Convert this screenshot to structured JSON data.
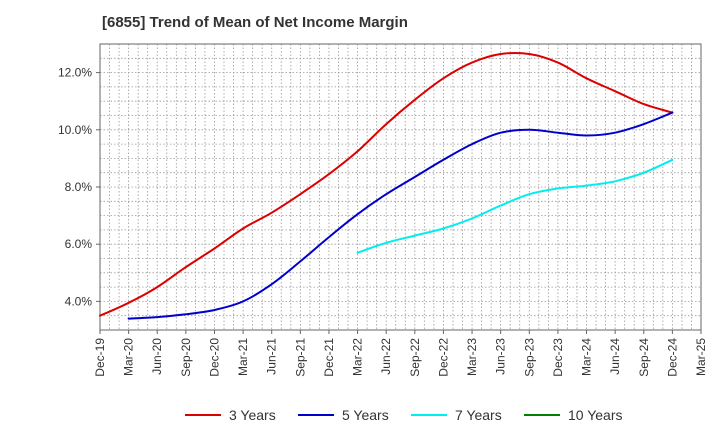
{
  "title": "[6855]  Trend of Mean of Net Income Margin",
  "chart_data": {
    "type": "line",
    "title": "[6855]  Trend of Mean of Net Income Margin",
    "xlabel": "",
    "ylabel": "",
    "x_ticks": [
      "Dec-19",
      "Mar-20",
      "Jun-20",
      "Sep-20",
      "Dec-20",
      "Mar-21",
      "Jun-21",
      "Sep-21",
      "Dec-21",
      "Mar-22",
      "Jun-22",
      "Sep-22",
      "Dec-22",
      "Mar-23",
      "Jun-23",
      "Sep-23",
      "Dec-23",
      "Mar-24",
      "Jun-24",
      "Sep-24",
      "Dec-24",
      "Mar-25"
    ],
    "y_ticks": [
      "4.0%",
      "6.0%",
      "8.0%",
      "10.0%",
      "12.0%"
    ],
    "y_tick_values": [
      4.0,
      6.0,
      8.0,
      10.0,
      12.0
    ],
    "ylim": [
      3.0,
      13.0
    ],
    "grid": true,
    "legend_position": "bottom",
    "series": [
      {
        "name": "3 Years",
        "color": "#dd0000",
        "x": [
          "Dec-19",
          "Mar-20",
          "Jun-20",
          "Sep-20",
          "Dec-20",
          "Mar-21",
          "Jun-21",
          "Sep-21",
          "Dec-21",
          "Mar-22",
          "Jun-22",
          "Sep-22",
          "Dec-22",
          "Mar-23",
          "Jun-23",
          "Sep-23",
          "Dec-23",
          "Mar-24",
          "Jun-24",
          "Sep-24",
          "Dec-24"
        ],
        "values": [
          3.5,
          3.95,
          4.5,
          5.2,
          5.85,
          6.55,
          7.1,
          7.75,
          8.45,
          9.25,
          10.2,
          11.05,
          11.8,
          12.35,
          12.65,
          12.65,
          12.35,
          11.8,
          11.35,
          10.9,
          10.6
        ]
      },
      {
        "name": "5 Years",
        "color": "#0000cc",
        "x": [
          "Mar-20",
          "Jun-20",
          "Sep-20",
          "Dec-20",
          "Mar-21",
          "Jun-21",
          "Sep-21",
          "Dec-21",
          "Mar-22",
          "Jun-22",
          "Sep-22",
          "Dec-22",
          "Mar-23",
          "Jun-23",
          "Sep-23",
          "Dec-23",
          "Mar-24",
          "Jun-24",
          "Sep-24",
          "Dec-24"
        ],
        "values": [
          3.4,
          3.45,
          3.55,
          3.7,
          4.0,
          4.6,
          5.4,
          6.25,
          7.05,
          7.75,
          8.35,
          8.95,
          9.5,
          9.9,
          10.0,
          9.9,
          9.8,
          9.9,
          10.2,
          10.6
        ]
      },
      {
        "name": "7 Years",
        "color": "#00eeee",
        "x": [
          "Mar-22",
          "Jun-22",
          "Sep-22",
          "Dec-22",
          "Mar-23",
          "Jun-23",
          "Sep-23",
          "Dec-23",
          "Mar-24",
          "Jun-24",
          "Sep-24",
          "Dec-24"
        ],
        "values": [
          5.7,
          6.05,
          6.3,
          6.55,
          6.9,
          7.35,
          7.75,
          7.95,
          8.05,
          8.2,
          8.5,
          8.95
        ]
      },
      {
        "name": "10 Years",
        "color": "#008000",
        "x": [],
        "values": []
      }
    ]
  }
}
